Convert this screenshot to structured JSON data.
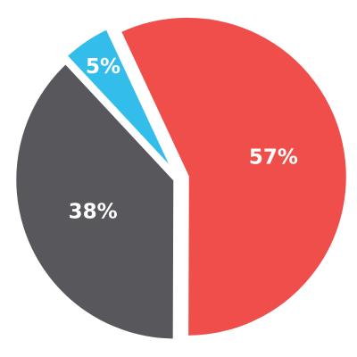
{
  "chart_data": {
    "type": "pie",
    "slices": [
      {
        "value": 57,
        "label": "57%",
        "color": "#f04e4a"
      },
      {
        "value": 38,
        "label": "38%",
        "color": "#58585c"
      },
      {
        "value": 5,
        "label": "5%",
        "color": "#33bdea"
      }
    ],
    "gap_color": "#ffffff"
  }
}
